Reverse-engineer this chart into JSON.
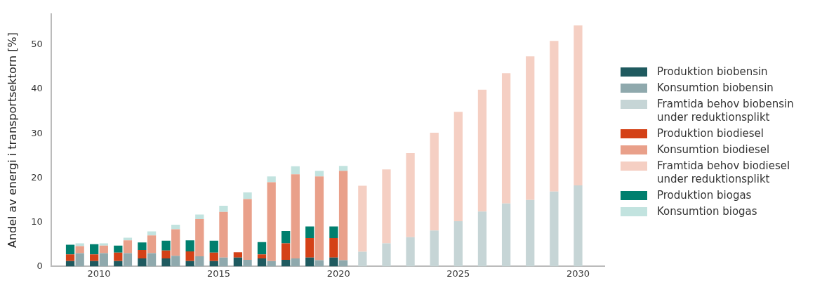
{
  "chart_data": {
    "type": "bar",
    "stacked": true,
    "ylabel": "Andel av energi i transportsektorn [%]",
    "x": [
      2008.8,
      2009.2,
      2009.8,
      2010.2,
      2010.8,
      2011.2,
      2011.8,
      2012.2,
      2012.8,
      2013.2,
      2013.8,
      2014.2,
      2014.8,
      2015.2,
      2015.8,
      2016.2,
      2016.8,
      2017.2,
      2017.8,
      2018.2,
      2018.8,
      2019.2,
      2019.8,
      2020.2,
      2021,
      2022,
      2023,
      2024,
      2025,
      2026,
      2027,
      2028,
      2029,
      2030
    ],
    "xlim": [
      2008,
      2031.1
    ],
    "xticks": [
      2010,
      2015,
      2020,
      2025,
      2030
    ],
    "ylim": [
      0,
      57
    ],
    "yticks": [
      0,
      10,
      20,
      30,
      40,
      50
    ],
    "grid": false,
    "legend": "right",
    "series": [
      {
        "name": "Produktion biobensin",
        "color": "#1f5a5f",
        "values": [
          1.2,
          null,
          1.2,
          null,
          1.2,
          null,
          1.8,
          null,
          1.8,
          null,
          1.2,
          null,
          1.2,
          null,
          2.0,
          null,
          1.8,
          null,
          1.5,
          null,
          2.0,
          null,
          2.0,
          null,
          null,
          null,
          null,
          null,
          null,
          null,
          null,
          null,
          null,
          null
        ]
      },
      {
        "name": "Konsumtion biobensin",
        "color": "#8fa9ad",
        "values": [
          null,
          3.0,
          null,
          3.0,
          null,
          3.0,
          null,
          3.0,
          null,
          2.4,
          null,
          2.3,
          null,
          2.0,
          null,
          1.5,
          null,
          1.2,
          null,
          1.8,
          null,
          1.4,
          null,
          1.4,
          null,
          null,
          null,
          null,
          null,
          null,
          null,
          null,
          null,
          null
        ]
      },
      {
        "name": "Framtida behov biobensin under reduktionsplikt",
        "color": "#c6d5d6",
        "values": [
          null,
          null,
          null,
          null,
          null,
          null,
          null,
          null,
          null,
          null,
          null,
          null,
          null,
          null,
          null,
          null,
          null,
          null,
          null,
          null,
          null,
          null,
          null,
          null,
          3.3,
          5.2,
          6.6,
          8.1,
          10.2,
          12.4,
          14.2,
          15.0,
          16.9,
          18.3
        ]
      },
      {
        "name": "Produktion biodiesel",
        "color": "#d44117",
        "values": [
          1.5,
          null,
          1.5,
          null,
          1.9,
          null,
          1.9,
          null,
          1.8,
          null,
          2.2,
          null,
          1.9,
          null,
          1.2,
          null,
          0.9,
          null,
          3.7,
          null,
          4.4,
          null,
          4.4,
          null,
          null,
          null,
          null,
          null,
          null,
          null,
          null,
          null,
          null,
          null
        ]
      },
      {
        "name": "Konsumtion biodiesel",
        "color": "#e9a08a",
        "values": [
          null,
          1.6,
          null,
          1.7,
          null,
          2.9,
          null,
          4.0,
          null,
          6.0,
          null,
          8.4,
          null,
          10.3,
          null,
          13.7,
          null,
          17.8,
          null,
          19.0,
          null,
          18.9,
          null,
          20.2,
          null,
          null,
          null,
          null,
          null,
          null,
          null,
          null,
          null,
          null
        ]
      },
      {
        "name": "Framtida behov biodiesel under reduktionsplikt",
        "color": "#f5cfc3",
        "values": [
          null,
          null,
          null,
          null,
          null,
          null,
          null,
          null,
          null,
          null,
          null,
          null,
          null,
          null,
          null,
          null,
          null,
          null,
          null,
          null,
          null,
          null,
          null,
          null,
          14.9,
          16.7,
          19.0,
          22.1,
          24.7,
          27.5,
          29.4,
          32.4,
          34.0,
          36.1
        ]
      },
      {
        "name": "Produktion biogas",
        "color": "#007f6e",
        "values": [
          2.2,
          null,
          2.3,
          null,
          1.6,
          null,
          1.7,
          null,
          2.2,
          null,
          2.5,
          null,
          2.7,
          null,
          null,
          null,
          2.8,
          null,
          2.8,
          null,
          2.6,
          null,
          2.6,
          null,
          null,
          null,
          null,
          null,
          null,
          null,
          null,
          null,
          null,
          null
        ]
      },
      {
        "name": "Konsumtion biogas",
        "color": "#c2e3df",
        "values": [
          null,
          0.6,
          null,
          0.5,
          null,
          0.6,
          null,
          0.9,
          null,
          1.0,
          null,
          1.0,
          null,
          1.4,
          null,
          1.5,
          null,
          1.3,
          null,
          1.8,
          null,
          1.3,
          null,
          1.1,
          null,
          null,
          null,
          null,
          null,
          null,
          null,
          null,
          null,
          null
        ]
      }
    ]
  }
}
